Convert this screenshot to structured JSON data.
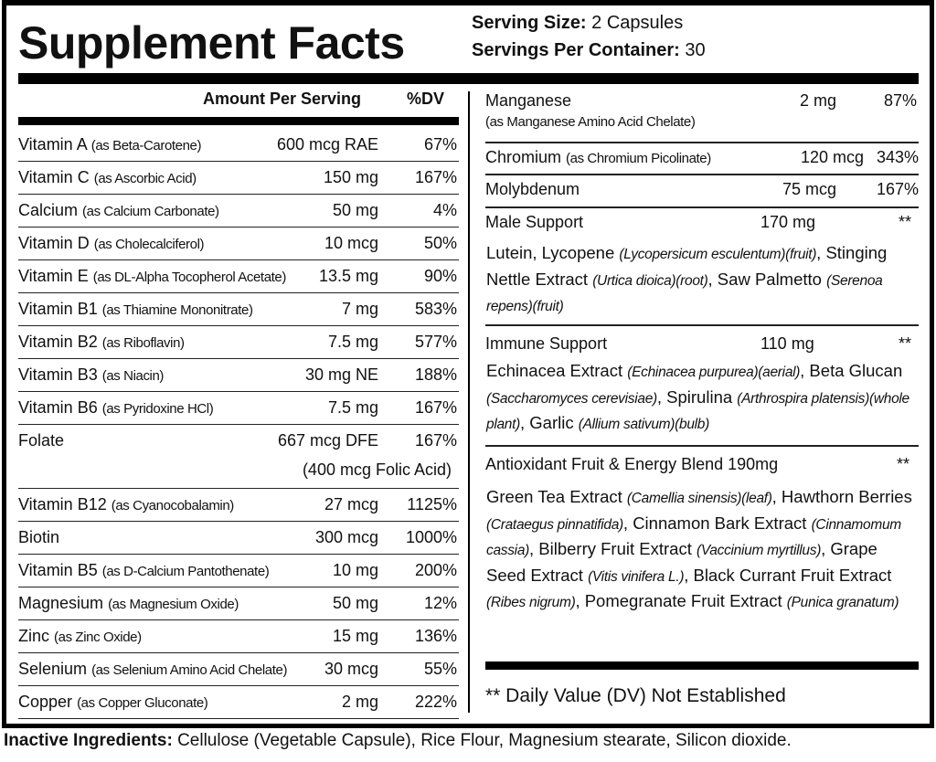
{
  "title": "Supplement Facts",
  "serving_size_label": "Serving Size:",
  "serving_size": "2 Capsules",
  "servings_per_container_label": "Servings Per Container:",
  "servings_per_container": "30",
  "header": {
    "amount": "Amount Per Serving",
    "dv": "%DV"
  },
  "left_rows": [
    {
      "name": "Vitamin A",
      "sub": "(as Beta-Carotene)",
      "amount": "600 mcg RAE",
      "dv": "67%"
    },
    {
      "name": "Vitamin C",
      "sub": "(as Ascorbic Acid)",
      "amount": "150 mg",
      "dv": "167%"
    },
    {
      "name": "Calcium",
      "sub": "(as Calcium Carbonate)",
      "amount": "50 mg",
      "dv": "4%"
    },
    {
      "name": "Vitamin D",
      "sub": "(as Cholecalciferol)",
      "amount": "10 mcg",
      "dv": "50%"
    },
    {
      "name": "Vitamin E",
      "sub": "(as DL-Alpha Tocopherol Acetate)",
      "amount": "13.5 mg",
      "dv": "90%"
    },
    {
      "name": "Vitamin B1",
      "sub": "(as Thiamine Mononitrate)",
      "amount": "7 mg",
      "dv": "583%"
    },
    {
      "name": "Vitamin B2",
      "sub": "(as Riboflavin)",
      "amount": "7.5 mg",
      "dv": "577%"
    },
    {
      "name": "Vitamin B3",
      "sub": "(as Niacin)",
      "amount": "30 mg NE",
      "dv": "188%"
    },
    {
      "name": "Vitamin B6",
      "sub": "(as Pyridoxine HCl)",
      "amount": "7.5 mg",
      "dv": "167%"
    },
    {
      "name": "Folate",
      "sub": "",
      "amount": "667 mcg DFE",
      "dv": "167%",
      "extra": "(400 mcg Folic Acid)"
    },
    {
      "name": "Vitamin B12",
      "sub": "(as Cyanocobalamin)",
      "amount": "27 mcg",
      "dv": "1125%"
    },
    {
      "name": "Biotin",
      "sub": "",
      "amount": "300 mcg",
      "dv": "1000%"
    },
    {
      "name": "Vitamin B5",
      "sub": "(as D-Calcium Pantothenate)",
      "amount": "10 mg",
      "dv": "200%"
    },
    {
      "name": "Magnesium",
      "sub": "(as Magnesium Oxide)",
      "amount": "50 mg",
      "dv": "12%"
    },
    {
      "name": "Zinc",
      "sub": "(as Zinc Oxide)",
      "amount": "15 mg",
      "dv": "136%"
    },
    {
      "name": "Selenium",
      "sub": "(as Selenium Amino Acid Chelate)",
      "amount": "30 mcg",
      "dv": "55%"
    },
    {
      "name": "Copper",
      "sub": "(as Copper Gluconate)",
      "amount": "2 mg",
      "dv": "222%"
    }
  ],
  "right": {
    "manganese": {
      "name": "Manganese",
      "sub": "(as Manganese Amino Acid Chelate)",
      "amount": "2 mg",
      "dv": "87%"
    },
    "chromium": {
      "name": "Chromium",
      "sub": "(as Chromium Picolinate)",
      "amount": "120 mcg",
      "dv": "343%"
    },
    "molybdenum": {
      "name": "Molybdenum",
      "amount": "75 mcg",
      "dv": "167%"
    },
    "male": {
      "name": "Male Support",
      "amount": "170 mg",
      "dv": "**",
      "parts": [
        [
          "Lutein, Lycopene ",
          "(Lycopersicum esculentum)(fruit)",
          ", Stinging Nettle Extract "
        ],
        [
          "",
          "(Urtica dioica)(root)",
          ", Saw Palmetto "
        ],
        [
          "",
          "(Serenoa repens)(fruit)",
          ""
        ]
      ]
    },
    "immune": {
      "name": "Immune Support",
      "amount": "110 mg",
      "dv": "**",
      "parts": [
        [
          "Echinacea Extract ",
          "(Echinacea purpurea)(aerial)",
          ", Beta Glucan "
        ],
        [
          "",
          "(Saccharomyces cerevisiae)",
          ", Spirulina "
        ],
        [
          "",
          "(Arthrospira platensis)(whole plant)",
          ", Garlic "
        ],
        [
          "",
          "(Allium sativum)(bulb)",
          ""
        ]
      ]
    },
    "antioxidant": {
      "name": "Antioxidant Fruit & Energy Blend 190mg",
      "dv": "**",
      "parts": [
        [
          "Green Tea Extract ",
          "(Camellia sinensis)(leaf)",
          ", Hawthorn Berries "
        ],
        [
          "",
          "(Crataegus pinnatifida)",
          ", Cinnamon Bark Extract "
        ],
        [
          "",
          "(Cinnamomum cassia)",
          ", Bilberry Fruit Extract "
        ],
        [
          "",
          "(Vaccinium myrtillus)",
          ", Grape Seed Extract "
        ],
        [
          "",
          "(Vitis vinifera L.)",
          ", Black Currant Fruit Extract "
        ],
        [
          "",
          "(Ribes nigrum)",
          ", Pomegranate Fruit Extract "
        ],
        [
          "",
          "(Punica granatum)",
          ""
        ]
      ]
    },
    "footnote": "** Daily Value (DV) Not Established"
  },
  "inactive_label": "Inactive Ingredients:",
  "inactive": "Cellulose (Vegetable Capsule), Rice Flour, Magnesium stearate, Silicon dioxide."
}
